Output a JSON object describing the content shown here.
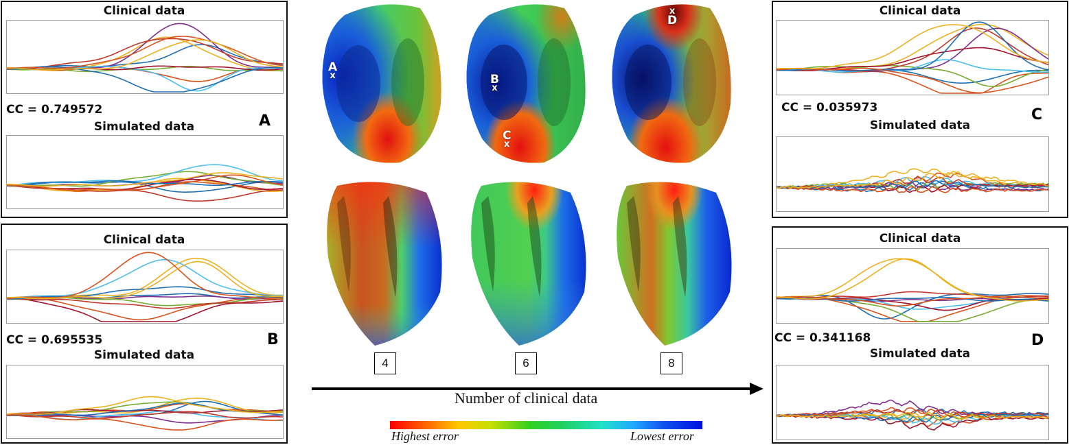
{
  "panels": [
    {
      "id": "A",
      "clinical_title": "Clinical data",
      "simulated_title": "Simulated data",
      "cc": "CC = 0.749572",
      "letter": "A"
    },
    {
      "id": "B",
      "clinical_title": "Clinical data",
      "simulated_title": "Simulated data",
      "cc": "CC = 0.695535",
      "letter": "B"
    },
    {
      "id": "C",
      "clinical_title": "Clinical data",
      "simulated_title": "Simulated data",
      "cc": "CC = 0.035973",
      "letter": "C"
    },
    {
      "id": "D",
      "clinical_title": "Clinical data",
      "simulated_title": "Simulated data",
      "cc": "CC = 0.341168",
      "letter": "D"
    }
  ],
  "heart_counts": [
    "4",
    "6",
    "8"
  ],
  "markers": [
    "A",
    "B",
    "C",
    "D"
  ],
  "marker_symbol": "x",
  "arrow_label": "Number of clinical data",
  "colorbar": {
    "left_label": "Highest error",
    "right_label": "Lowest error"
  },
  "trace_colors": [
    "#1f6fb4",
    "#d9531e",
    "#edb120",
    "#7e2f8e",
    "#77ac30",
    "#4dbeee",
    "#a2142f",
    "#c0392b"
  ]
}
